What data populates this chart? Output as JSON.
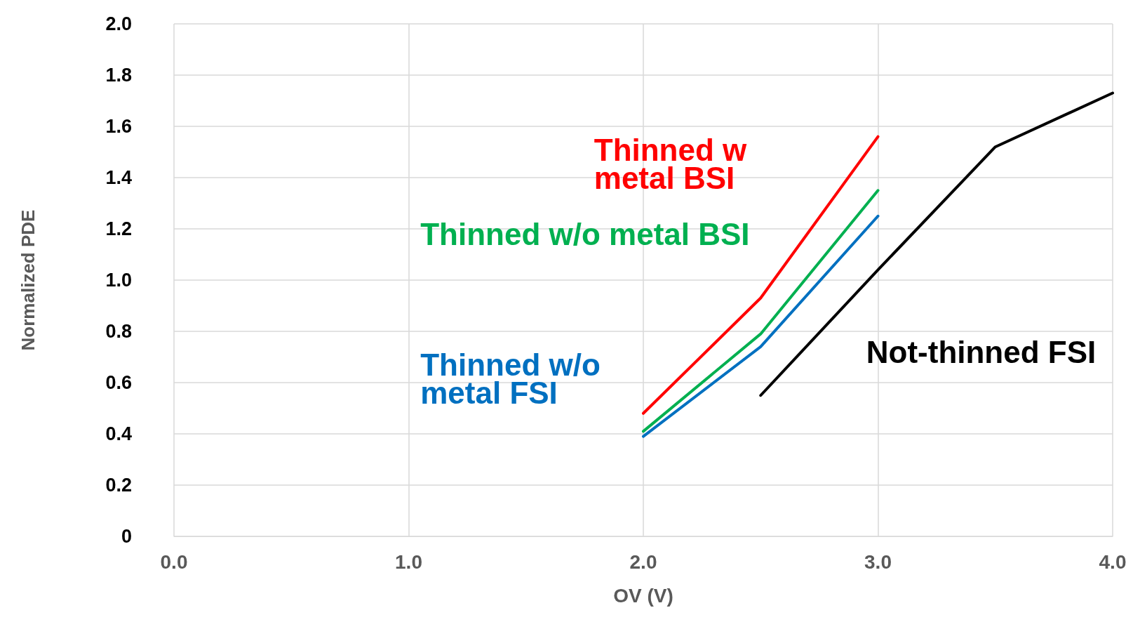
{
  "chart_data": {
    "type": "line",
    "xlabel": "OV (V)",
    "ylabel": "Normalized PDE",
    "xlim": [
      0,
      4
    ],
    "xticks": [
      {
        "value": 0,
        "label": "0.0"
      },
      {
        "value": 1,
        "label": "1.0"
      },
      {
        "value": 2,
        "label": "2.0"
      },
      {
        "value": 3,
        "label": "3.0"
      },
      {
        "value": 4,
        "label": "4.0"
      }
    ],
    "ylim": [
      0,
      2
    ],
    "yticks": [
      0,
      0.2,
      0.4,
      0.6,
      0.8,
      {
        "value": 1,
        "label": "1.0"
      },
      1.2,
      1.4,
      1.6,
      1.8,
      {
        "value": 2,
        "label": "2.0"
      }
    ],
    "grid": true,
    "legend": false,
    "marker": "none",
    "line_style": "solid",
    "series": [
      {
        "name": "Thinned w metal BSI",
        "color": "#ff0000",
        "x": [
          2,
          2.5,
          3
        ],
        "values": [
          0.48,
          0.93,
          1.56
        ]
      },
      {
        "name": "Thinned w/o metal BSI",
        "color": "#00b050",
        "x": [
          2,
          2.5,
          3
        ],
        "values": [
          0.41,
          0.79,
          1.35
        ]
      },
      {
        "name": "Thinned w/o metal FSI",
        "color": "#0070c0",
        "x": [
          2,
          2.5,
          3
        ],
        "values": [
          0.39,
          0.74,
          1.25
        ]
      },
      {
        "name": "Not-thinned FSI",
        "color": "#000000",
        "x": [
          2.5,
          3,
          3.5,
          4
        ],
        "values": [
          0.55,
          1.04,
          1.52,
          1.73
        ]
      }
    ]
  }
}
